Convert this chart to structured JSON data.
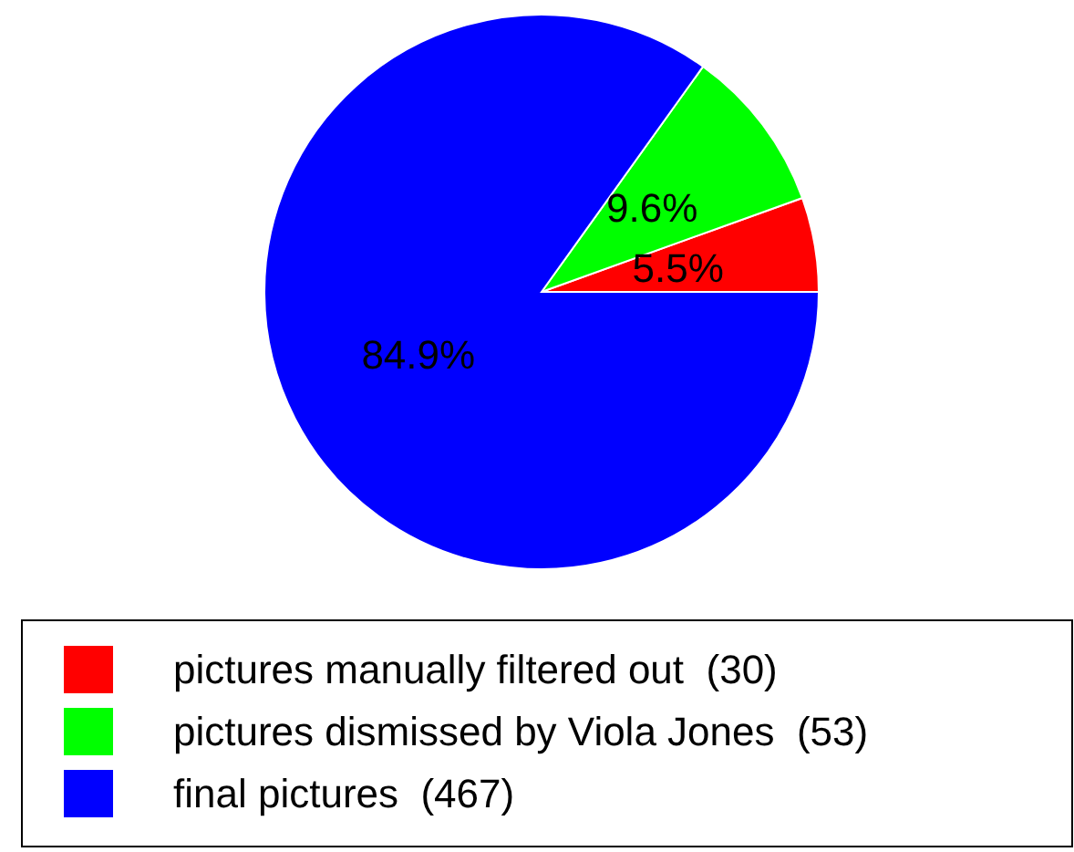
{
  "chart_data": {
    "type": "pie",
    "categories": [
      "pictures manually filtered out  (30)",
      "pictures dismissed by Viola Jones  (53)",
      "final pictures  (467)"
    ],
    "values": [
      5.5,
      9.6,
      84.9
    ],
    "value_labels": [
      "5.5%",
      "9.6%",
      "84.9%"
    ],
    "colors": [
      "#ff0000",
      "#00ff00",
      "#0000ff"
    ],
    "legend": "bottom"
  }
}
